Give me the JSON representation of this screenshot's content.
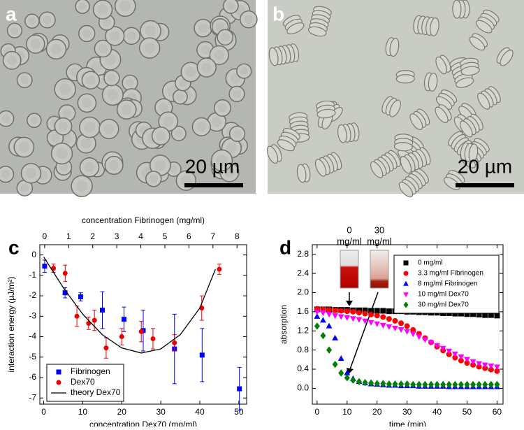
{
  "images": [
    {
      "label": "a",
      "scale_bar": "20 µm"
    },
    {
      "label": "b",
      "scale_bar": "20 µm"
    }
  ],
  "chart_data": [
    {
      "type": "scatter",
      "panel_label": "c",
      "xlabel": "concentration Dex70 (mg/ml)",
      "x2label": "concentration Fibrinogen (mg/ml)",
      "ylabel": "interaction energy (µJ/m²)",
      "xlim": [
        -1,
        52
      ],
      "xticks": [
        0,
        10,
        20,
        30,
        40,
        50
      ],
      "x2lim": [
        -0.2,
        8.4
      ],
      "x2ticks": [
        0,
        1,
        2,
        3,
        4,
        5,
        6,
        7,
        8
      ],
      "ylim": [
        -7.3,
        0.5
      ],
      "yticks": [
        0,
        -1,
        -2,
        -3,
        -4,
        -5,
        -6,
        -7
      ],
      "legend": "lower left",
      "series": [
        {
          "name": "Fibrinogen",
          "color": "#0000ff",
          "marker": "square",
          "axis": "x2",
          "x": [
            0,
            0.85,
            1.5,
            2.4,
            3.3,
            4.1,
            5.4,
            6.55,
            8.1
          ],
          "values": [
            -0.55,
            -1.85,
            -2.05,
            -2.7,
            -3.15,
            -3.7,
            -4.6,
            -4.9,
            -6.55
          ],
          "errors": [
            0.3,
            0.25,
            0.2,
            0.9,
            0.6,
            1.0,
            1.7,
            1.3,
            1.05
          ]
        },
        {
          "name": "Dex70",
          "color": "#ee0000",
          "marker": "circle",
          "x": [
            2.5,
            5.5,
            8.5,
            11.5,
            13,
            16,
            20,
            25,
            28,
            33.5,
            40.5,
            45
          ],
          "values": [
            -0.65,
            -0.9,
            -3.0,
            -3.35,
            -3.2,
            -4.55,
            -4.0,
            -3.75,
            -4.1,
            -4.3,
            -2.6,
            -0.7
          ],
          "errors": [
            0.2,
            0.4,
            0.5,
            0.3,
            0.5,
            0.5,
            0.4,
            0.5,
            0.5,
            0.4,
            0.6,
            0.25
          ]
        },
        {
          "name": "theory Dex70",
          "color": "#000000",
          "marker": "line",
          "x": [
            0,
            5,
            10,
            15,
            20,
            25,
            30,
            35,
            40,
            44
          ],
          "values": [
            -0.1,
            -1.6,
            -2.9,
            -3.9,
            -4.55,
            -4.8,
            -4.6,
            -3.9,
            -2.6,
            -0.7
          ]
        }
      ]
    },
    {
      "type": "scatter",
      "panel_label": "d",
      "xlabel": "time (min)",
      "ylabel": "absorption",
      "xlim": [
        -1.6,
        62
      ],
      "xticks": [
        0,
        10,
        20,
        30,
        40,
        50,
        60
      ],
      "ylim": [
        -0.33,
        3.0
      ],
      "yticks": [
        {
          "value": 0,
          "label": "0.0"
        },
        0.4,
        0.8,
        1.2,
        1.6,
        {
          "value": 2,
          "label": "2.0"
        },
        2.4,
        2.8
      ],
      "legend": "upper right",
      "annotations": [
        "0",
        "mg/ml",
        "30",
        "mg/ml"
      ],
      "x": [
        0,
        2,
        4,
        6,
        8,
        10,
        12,
        14,
        16,
        18,
        20,
        22,
        24,
        26,
        28,
        30,
        32,
        34,
        36,
        38,
        40,
        42,
        44,
        46,
        48,
        50,
        52,
        54,
        56,
        58,
        60
      ],
      "series": [
        {
          "name": "0 mg/ml",
          "color": "#000000",
          "marker": "square",
          "values": [
            1.65,
            1.65,
            1.65,
            1.64,
            1.64,
            1.64,
            1.63,
            1.63,
            1.63,
            1.62,
            1.62,
            1.62,
            1.61,
            1.61,
            1.61,
            1.6,
            1.6,
            1.59,
            1.59,
            1.58,
            1.58,
            1.57,
            1.57,
            1.56,
            1.56,
            1.55,
            1.55,
            1.54,
            1.53,
            1.53,
            1.52
          ]
        },
        {
          "name": "3.3 mg/ml Fibrinogen",
          "color": "#ff0000",
          "marker": "circle",
          "values": [
            1.66,
            1.65,
            1.64,
            1.63,
            1.62,
            1.61,
            1.6,
            1.58,
            1.56,
            1.54,
            1.52,
            1.49,
            1.45,
            1.41,
            1.36,
            1.3,
            1.22,
            1.14,
            1.05,
            0.96,
            0.87,
            0.79,
            0.71,
            0.64,
            0.58,
            0.53,
            0.49,
            0.45,
            0.42,
            0.39,
            0.36
          ]
        },
        {
          "name": "8 mg/ml Fibrinogen",
          "color": "#0000ff",
          "marker": "triangle-up",
          "values": [
            1.5,
            1.42,
            1.3,
            1.05,
            0.62,
            0.32,
            0.2,
            0.14,
            0.11,
            0.09,
            0.08,
            0.07,
            0.06,
            0.06,
            0.05,
            0.05,
            0.05,
            0.04,
            0.04,
            0.04,
            0.04,
            0.04,
            0.03,
            0.03,
            0.03,
            0.03,
            0.03,
            0.03,
            0.03,
            0.03,
            0.03
          ]
        },
        {
          "name": "10 mg/ml Dex70",
          "color": "#ff00ff",
          "marker": "triangle-down",
          "values": [
            1.6,
            1.58,
            1.55,
            1.52,
            1.5,
            1.48,
            1.46,
            1.44,
            1.41,
            1.38,
            1.35,
            1.32,
            1.29,
            1.26,
            1.23,
            1.19,
            1.14,
            1.08,
            1.02,
            0.96,
            0.9,
            0.84,
            0.78,
            0.72,
            0.66,
            0.61,
            0.56,
            0.52,
            0.49,
            0.47,
            0.45
          ]
        },
        {
          "name": "30 mg/ml Dex70",
          "color": "#008000",
          "marker": "diamond",
          "values": [
            1.3,
            1.1,
            0.8,
            0.5,
            0.32,
            0.22,
            0.17,
            0.14,
            0.12,
            0.11,
            0.1,
            0.1,
            0.09,
            0.09,
            0.09,
            0.09,
            0.08,
            0.08,
            0.08,
            0.08,
            0.08,
            0.08,
            0.08,
            0.08,
            0.08,
            0.08,
            0.08,
            0.08,
            0.08,
            0.08,
            0.08
          ]
        }
      ]
    }
  ]
}
